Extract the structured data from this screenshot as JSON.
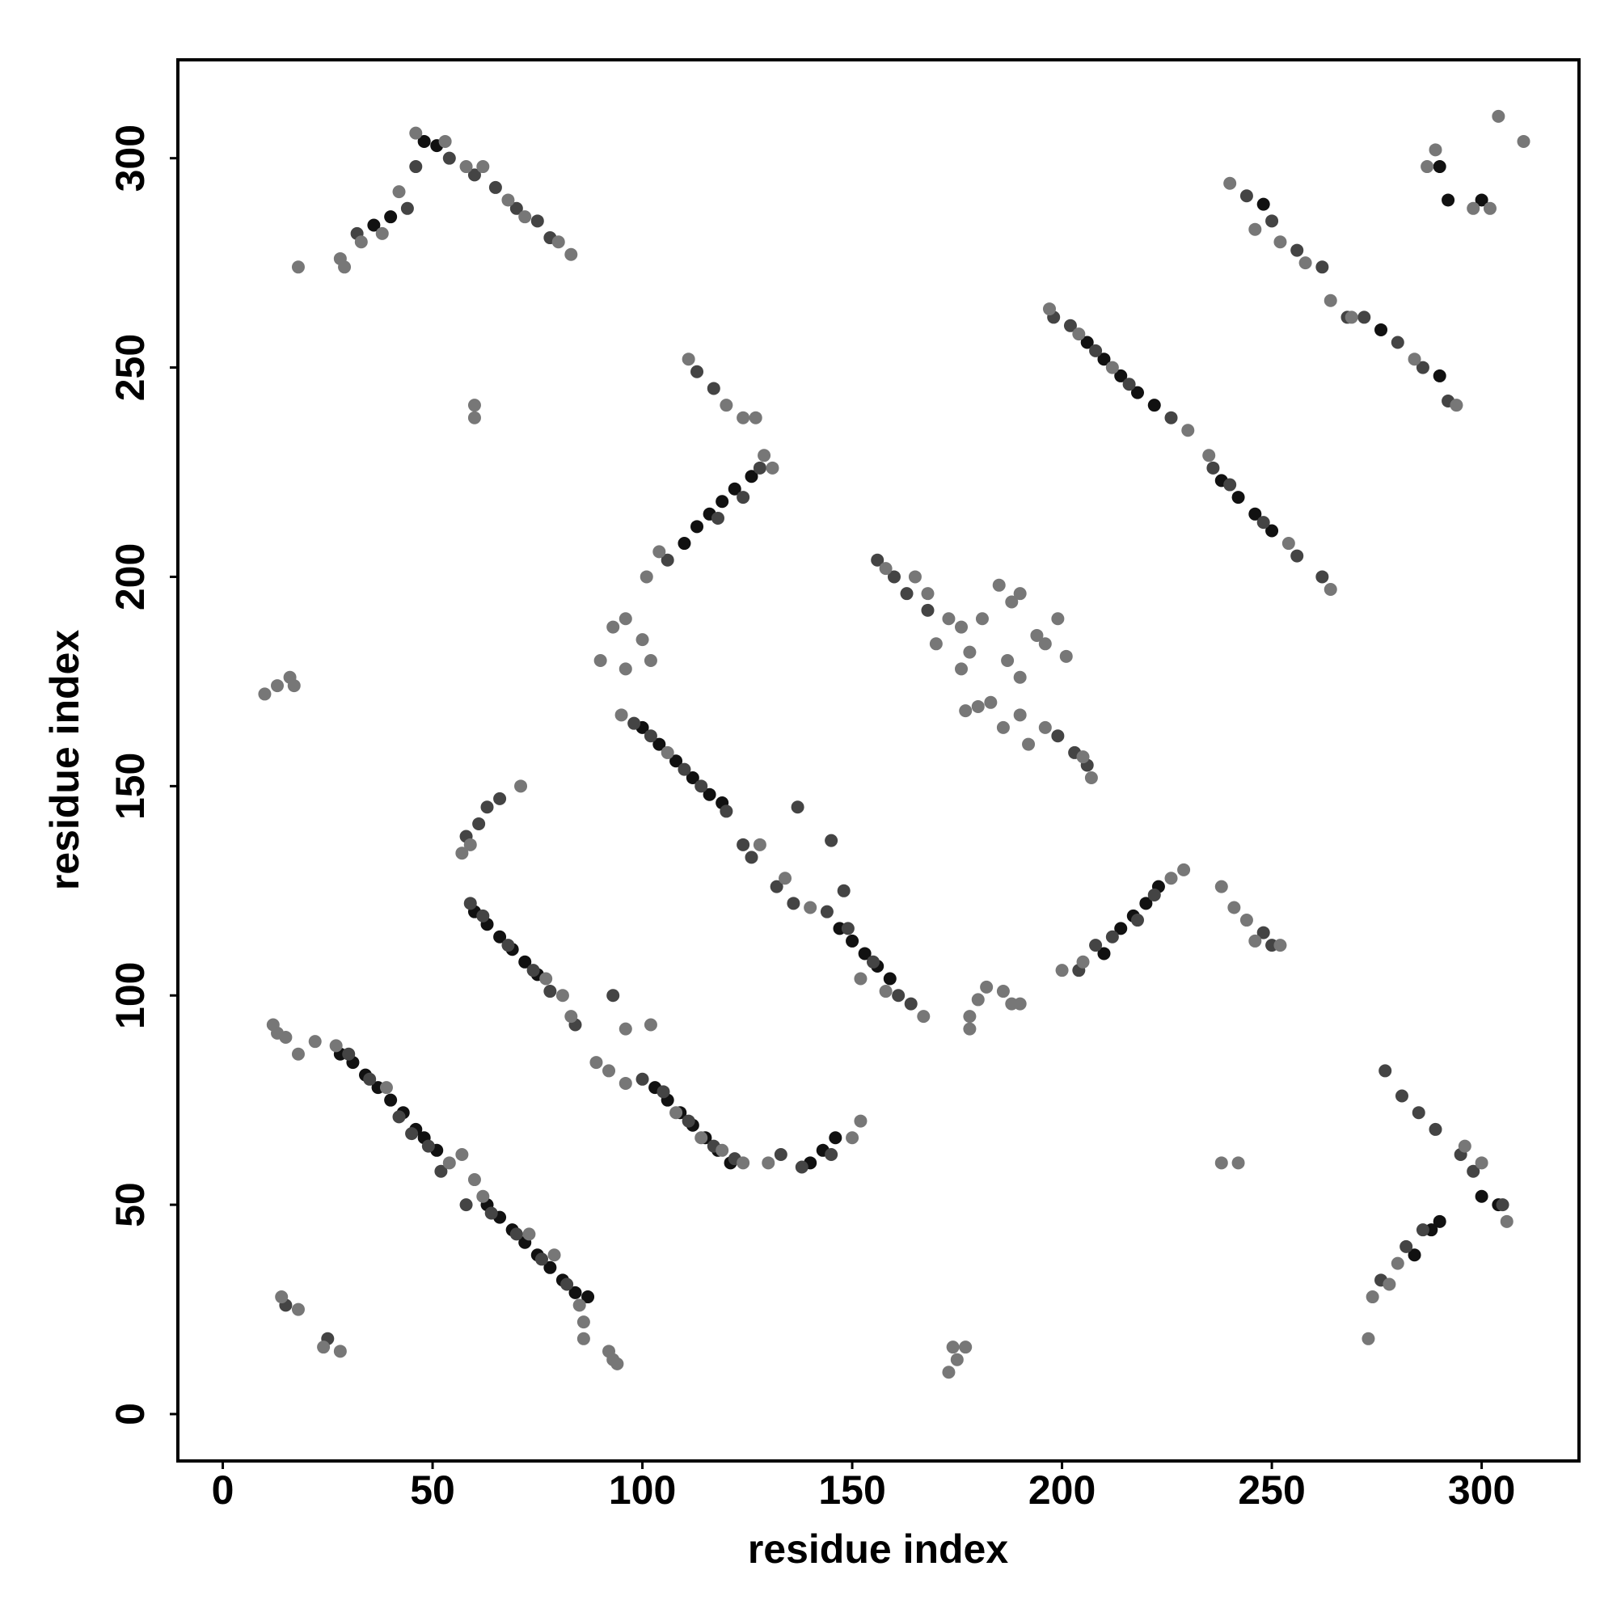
{
  "chart_data": {
    "type": "scatter",
    "x_label": "residue index",
    "y_label": "residue index",
    "xlim": [
      -10.7,
      323.2
    ],
    "ylim": [
      -11.2,
      323.5
    ],
    "xticks": [
      0,
      50,
      100,
      150,
      200,
      250,
      300
    ],
    "yticks": [
      0,
      50,
      100,
      150,
      200,
      250,
      300
    ],
    "series": [
      {
        "color": "#111111",
        "x": [
          28,
          31,
          34,
          37,
          40,
          43,
          46,
          48,
          51,
          63,
          66,
          69,
          72,
          75,
          78,
          81,
          84,
          87,
          60,
          63,
          66,
          69,
          72,
          75,
          103,
          106,
          109,
          112,
          115,
          118,
          121,
          100,
          104,
          108,
          112,
          116,
          119,
          147,
          150,
          153,
          156,
          159,
          110,
          113,
          116,
          119,
          122,
          126,
          48,
          51,
          36,
          40,
          140,
          143,
          146,
          210,
          214,
          217,
          220,
          223,
          206,
          210,
          214,
          218,
          222,
          238,
          242,
          246,
          250,
          248,
          276,
          290,
          292,
          300,
          290,
          284,
          288,
          304,
          300,
          290
        ],
        "values": [
          86,
          84,
          81,
          78,
          75,
          72,
          68,
          66,
          63,
          50,
          47,
          44,
          41,
          38,
          35,
          32,
          29,
          28,
          120,
          117,
          114,
          111,
          108,
          105,
          78,
          75,
          72,
          69,
          66,
          63,
          60,
          164,
          160,
          156,
          152,
          148,
          146,
          116,
          113,
          110,
          107,
          104,
          208,
          212,
          215,
          218,
          221,
          224,
          304,
          303,
          284,
          286,
          60,
          63,
          66,
          110,
          116,
          119,
          122,
          126,
          256,
          252,
          248,
          244,
          241,
          223,
          219,
          215,
          211,
          289,
          259,
          248,
          290,
          290,
          298,
          38,
          44,
          50,
          52,
          46
        ]
      },
      {
        "color": "#444444",
        "x": [
          30,
          35,
          42,
          45,
          49,
          52,
          58,
          64,
          70,
          76,
          82,
          59,
          62,
          68,
          74,
          78,
          84,
          100,
          105,
          111,
          117,
          122,
          98,
          102,
          110,
          114,
          120,
          124,
          126,
          132,
          136,
          144,
          149,
          155,
          161,
          164,
          106,
          118,
          124,
          128,
          113,
          117,
          32,
          44,
          46,
          54,
          60,
          65,
          70,
          75,
          78,
          58,
          61,
          63,
          66,
          133,
          138,
          145,
          156,
          160,
          163,
          168,
          199,
          203,
          206,
          204,
          208,
          212,
          218,
          222,
          248,
          250,
          198,
          202,
          208,
          216,
          226,
          236,
          240,
          248,
          256,
          262,
          244,
          250,
          256,
          262,
          268,
          272,
          280,
          286,
          292,
          277,
          281,
          285,
          289,
          295,
          298,
          305,
          282,
          286,
          276,
          93,
          15,
          25,
          148,
          137,
          145
        ],
        "values": [
          86,
          80,
          71,
          67,
          64,
          58,
          50,
          48,
          43,
          37,
          31,
          122,
          119,
          112,
          106,
          101,
          93,
          80,
          77,
          70,
          64,
          61,
          165,
          162,
          154,
          150,
          144,
          136,
          133,
          126,
          122,
          120,
          116,
          108,
          100,
          98,
          204,
          214,
          219,
          226,
          249,
          245,
          282,
          288,
          298,
          300,
          296,
          293,
          288,
          285,
          281,
          138,
          141,
          145,
          147,
          62,
          59,
          62,
          204,
          200,
          196,
          192,
          162,
          158,
          155,
          106,
          112,
          114,
          118,
          124,
          115,
          112,
          262,
          260,
          254,
          246,
          238,
          226,
          222,
          213,
          205,
          200,
          291,
          285,
          278,
          274,
          262,
          262,
          256,
          250,
          242,
          82,
          76,
          72,
          68,
          62,
          58,
          50,
          40,
          44,
          32,
          100,
          26,
          18,
          125,
          145,
          137
        ]
      },
      {
        "color": "#777777",
        "x": [
          27,
          39,
          54,
          57,
          60,
          62,
          73,
          79,
          85,
          86,
          12,
          13,
          15,
          18,
          22,
          77,
          81,
          83,
          89,
          92,
          96,
          108,
          114,
          119,
          124,
          130,
          95,
          106,
          128,
          134,
          140,
          152,
          158,
          167,
          101,
          104,
          129,
          131,
          111,
          120,
          124,
          127,
          28,
          29,
          33,
          38,
          42,
          46,
          53,
          58,
          62,
          68,
          72,
          80,
          83,
          18,
          57,
          59,
          71,
          60,
          60,
          10,
          13,
          16,
          17,
          92,
          93,
          94,
          90,
          93,
          96,
          100,
          102,
          96,
          14,
          18,
          24,
          28,
          86,
          96,
          102,
          158,
          165,
          168,
          170,
          173,
          176,
          176,
          178,
          181,
          183,
          185,
          188,
          190,
          187,
          190,
          194,
          196,
          199,
          201,
          180,
          186,
          190,
          192,
          196,
          205,
          207,
          177,
          200,
          205,
          226,
          229,
          238,
          241,
          244,
          246,
          252,
          178,
          180,
          182,
          186,
          188,
          190,
          178,
          173,
          175,
          177,
          174,
          197,
          204,
          212,
          230,
          235,
          254,
          264,
          240,
          246,
          252,
          258,
          264,
          269,
          284,
          294,
          289,
          304,
          310,
          298,
          302,
          287,
          274,
          278,
          280,
          296,
          300,
          306,
          273,
          238,
          242,
          152,
          150
        ],
        "values": [
          88,
          78,
          60,
          62,
          56,
          52,
          43,
          38,
          26,
          22,
          93,
          91,
          90,
          86,
          89,
          104,
          100,
          95,
          84,
          82,
          79,
          72,
          66,
          63,
          60,
          60,
          167,
          158,
          136,
          128,
          121,
          104,
          101,
          95,
          200,
          206,
          229,
          226,
          252,
          241,
          238,
          238,
          276,
          274,
          280,
          282,
          292,
          306,
          304,
          298,
          298,
          290,
          286,
          280,
          277,
          274,
          134,
          136,
          150,
          241,
          238,
          172,
          174,
          176,
          174,
          15,
          13,
          12,
          180,
          188,
          190,
          185,
          180,
          178,
          28,
          25,
          16,
          15,
          18,
          92,
          93,
          202,
          200,
          196,
          184,
          190,
          178,
          188,
          182,
          190,
          170,
          198,
          194,
          196,
          180,
          176,
          186,
          184,
          190,
          181,
          169,
          164,
          167,
          160,
          164,
          157,
          152,
          168,
          106,
          108,
          128,
          130,
          126,
          121,
          118,
          113,
          112,
          95,
          99,
          102,
          101,
          98,
          98,
          92,
          10,
          13,
          16,
          16,
          264,
          258,
          250,
          235,
          229,
          208,
          197,
          294,
          283,
          280,
          275,
          266,
          262,
          252,
          241,
          302,
          310,
          304,
          288,
          288,
          298,
          28,
          31,
          36,
          64,
          60,
          46,
          18,
          60,
          60,
          70,
          66
        ]
      }
    ]
  }
}
